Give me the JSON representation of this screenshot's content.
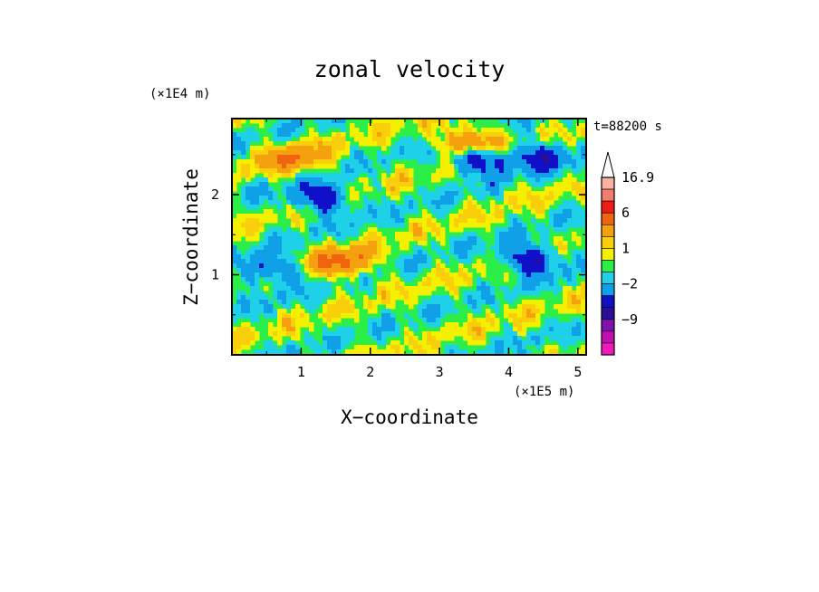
{
  "chart_data": {
    "type": "heatmap",
    "title": "zonal velocity",
    "xlabel": "X−coordinate",
    "ylabel": "Z−coordinate",
    "x_unit": "(×1E5 m)",
    "y_unit": "(×1E4 m)",
    "time_label": "t=88200 s",
    "xlim": [
      0,
      5.12
    ],
    "ylim": [
      0,
      2.95
    ],
    "x_ticks": [
      1,
      2,
      3,
      4,
      5
    ],
    "y_ticks": [
      1,
      2
    ],
    "colorbar": {
      "labels": [
        "16.9",
        "6",
        "1",
        "−2",
        "−9"
      ],
      "label_values": [
        16.9,
        6,
        1,
        -2,
        -9
      ],
      "levels_top_to_bottom": [
        {
          "value": 16.9,
          "color": "#f7b2a4"
        },
        {
          "value": 12,
          "color": "#f27c70"
        },
        {
          "value": 8,
          "color": "#ef1c18"
        },
        {
          "value": 6,
          "color": "#f06410"
        },
        {
          "value": 3,
          "color": "#f5a00e"
        },
        {
          "value": 1.5,
          "color": "#f8cf0a"
        },
        {
          "value": 1,
          "color": "#f4f000"
        },
        {
          "value": 0,
          "color": "#2cee48"
        },
        {
          "value": -1,
          "color": "#1ed0e8"
        },
        {
          "value": -2,
          "color": "#10a0e8"
        },
        {
          "value": -4,
          "color": "#1010c8"
        },
        {
          "value": -6,
          "color": "#2a1096"
        },
        {
          "value": -9,
          "color": "#8010b0"
        },
        {
          "value": -12,
          "color": "#c010b0"
        },
        {
          "value": -16,
          "color": "#f018b8"
        }
      ]
    },
    "features": [
      {
        "x": 0.55,
        "z": 1.05,
        "value": -4
      },
      {
        "x": 1.3,
        "z": 1.95,
        "value": -5
      },
      {
        "x": 1.6,
        "z": 1.15,
        "value": 5
      },
      {
        "x": 3.55,
        "z": 2.45,
        "value": -6
      },
      {
        "x": 3.45,
        "z": 2.65,
        "value": 6
      },
      {
        "x": 4.3,
        "z": 1.2,
        "value": -5
      },
      {
        "x": 4.45,
        "z": 2.5,
        "value": -4
      },
      {
        "x": 0.9,
        "z": 2.45,
        "value": 4
      },
      {
        "x": 2.6,
        "z": 1.2,
        "value": 0
      }
    ]
  }
}
